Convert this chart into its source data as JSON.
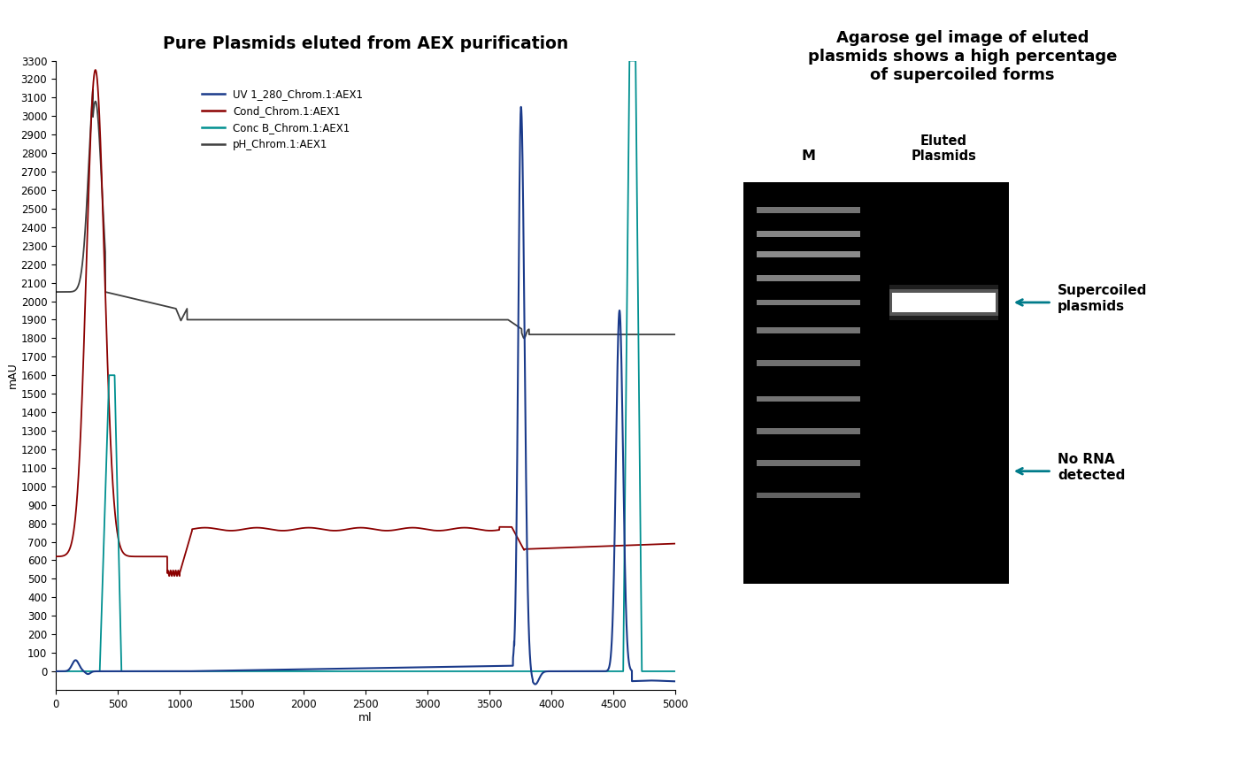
{
  "title_left": "Pure Plasmids eluted from AEX purification",
  "title_right": "Agarose gel image of eluted\nplasmids shows a high percentage\nof supercoiled forms",
  "xlabel": "ml",
  "ylabel": "mAU",
  "ylim": [
    -100,
    3300
  ],
  "xlim": [
    0,
    5000
  ],
  "yticks": [
    0,
    100,
    200,
    300,
    400,
    500,
    600,
    700,
    800,
    900,
    1000,
    1100,
    1200,
    1300,
    1400,
    1500,
    1600,
    1700,
    1800,
    1900,
    2000,
    2100,
    2200,
    2300,
    2400,
    2500,
    2600,
    2700,
    2800,
    2900,
    3000,
    3100,
    3200,
    3300
  ],
  "xticks": [
    0,
    500,
    1000,
    1500,
    2000,
    2500,
    3000,
    3500,
    4000,
    4500,
    5000
  ],
  "legend_labels": [
    "UV 1_280_Chrom.1:AEX1",
    "Cond_Chrom.1:AEX1",
    "Conc B_Chrom.1:AEX1",
    "pH_Chrom.1:AEX1"
  ],
  "legend_colors": [
    "#1a3a8a",
    "#8b0000",
    "#009090",
    "#404040"
  ],
  "annotation1": "Supercoiled\nplasmids",
  "annotation2": "No RNA\ndetected",
  "gel_label_M": "M",
  "gel_label_eluted": "Eluted\nPlasmids",
  "background_color": "#ffffff",
  "arrow_color": "#007b8a"
}
